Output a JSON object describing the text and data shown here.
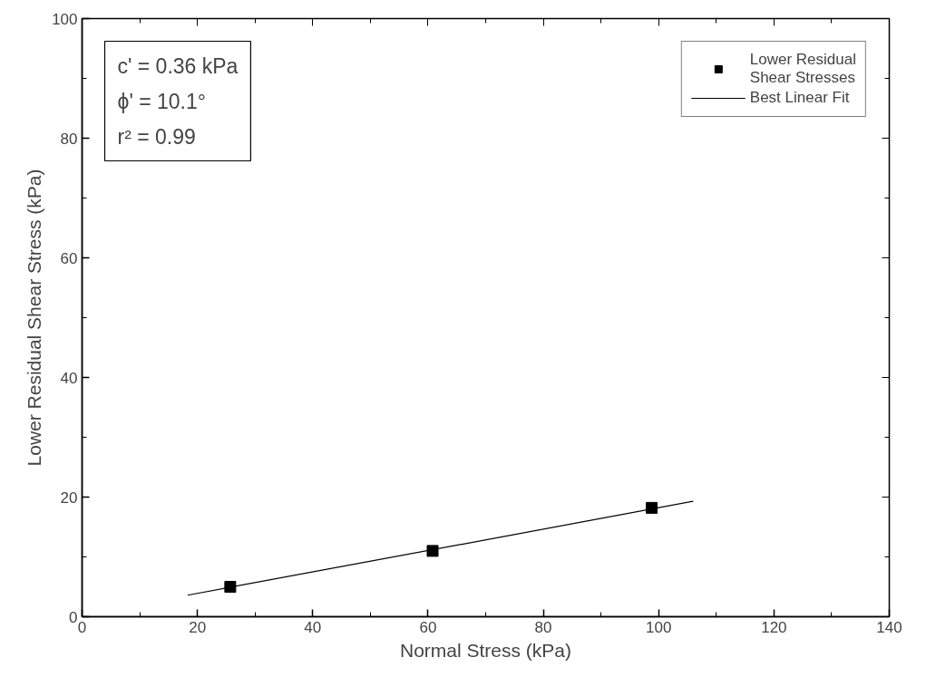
{
  "chart_data": {
    "type": "scatter",
    "xlabel": "Normal Stress (kPa)",
    "ylabel": "Lower Residual Shear Stress (kPa)",
    "xlim": [
      0,
      140
    ],
    "xticks": [
      0,
      20,
      40,
      60,
      80,
      100,
      120,
      140
    ],
    "ylim": [
      0,
      100
    ],
    "yticks": [
      0,
      20,
      40,
      60,
      80,
      100
    ],
    "grid": false,
    "legend": "top right",
    "series": [
      {
        "name": "Lower Residual\nShear Stresses",
        "color": "#000000",
        "marker": "square",
        "x": [
          25.7,
          60.8,
          98.8
        ],
        "values": [
          5.0,
          11.0,
          18.2
        ]
      },
      {
        "name": "Best Linear Fit",
        "type": "line",
        "line_style": "solid",
        "color": "#000000",
        "x": [
          18.3,
          106
        ],
        "values": [
          3.6,
          19.3
        ]
      }
    ],
    "annotations": [
      "c' = 0.36 kPa",
      "ϕ' = 10.1°",
      "r² = 0.99"
    ]
  }
}
